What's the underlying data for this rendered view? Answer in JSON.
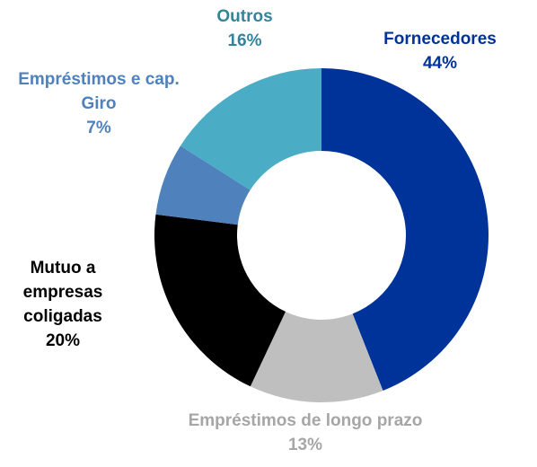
{
  "chart_data": {
    "type": "donut",
    "categories": [
      "Fornecedores",
      "Empréstimos de longo prazo",
      "Mutuo a empresas coligadas",
      "Empréstimos e cap. Giro",
      "Outros"
    ],
    "values": [
      44,
      13,
      20,
      7,
      16
    ],
    "value_labels": [
      "44%",
      "13%",
      "20%",
      "7%",
      "16%"
    ],
    "colors": [
      "#003399",
      "#bfbfbf",
      "#000000",
      "#4f81bd",
      "#4bacc6"
    ],
    "label_colors": [
      "#003399",
      "#a6a6a6",
      "#000000",
      "#4f81bd",
      "#31849b"
    ]
  }
}
